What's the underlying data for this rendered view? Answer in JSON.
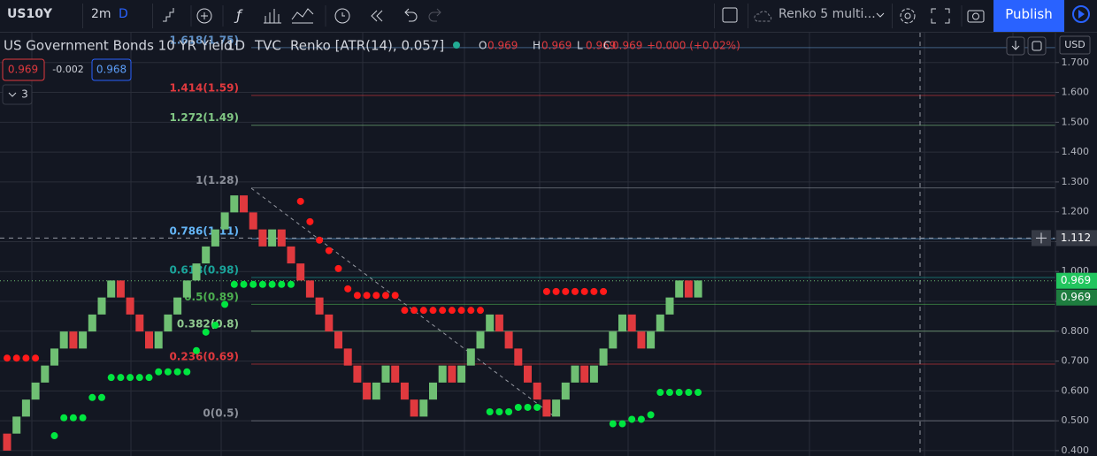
{
  "toolbar": {
    "symbol": "US10Y",
    "interval": "2m",
    "interval_unit": "D",
    "template": "Renko 5 multi...",
    "publish": "Publish"
  },
  "legend": {
    "title": "US Government Bonds 10 YR Yield",
    "resolution": "1D",
    "source": "TVC",
    "style": "Renko [ATR(14), 0.057]",
    "ohlc": [
      {
        "key": "O",
        "value": "0.969"
      },
      {
        "key": "H",
        "value": "0.969"
      },
      {
        "key": "L",
        "value": "0.969"
      },
      {
        "key": "C",
        "value": "0.969"
      }
    ],
    "change": "+0.000 (+0.02%)",
    "sell": "0.969",
    "spread": "-0.002",
    "buy": "0.968",
    "indicators": "3"
  },
  "chart_data": {
    "type": "renko",
    "currency": "USD",
    "ylim": [
      0.382,
      1.8
    ],
    "yticks": [
      {
        "value": 1.7,
        "label": "1.700"
      },
      {
        "value": 1.6,
        "label": "1.600"
      },
      {
        "value": 1.5,
        "label": "1.500"
      },
      {
        "value": 1.4,
        "label": "1.400"
      },
      {
        "value": 1.3,
        "label": "1.300"
      },
      {
        "value": 1.2,
        "label": "1.200"
      },
      {
        "value": 1.1,
        "label": "1.100"
      },
      {
        "value": 1.0,
        "label": "1.000"
      },
      {
        "value": 0.9,
        "label": "0.900"
      },
      {
        "value": 0.8,
        "label": "0.800"
      },
      {
        "value": 0.7,
        "label": "0.700"
      },
      {
        "value": 0.6,
        "label": "0.600"
      },
      {
        "value": 0.5,
        "label": "0.500"
      },
      {
        "value": 0.4,
        "label": "0.400"
      }
    ],
    "grid": true,
    "up_color": "#6fbf73",
    "down_color": "#e0393e",
    "up_dot_color": "#00e640",
    "down_dot_color": "#ff1a1a",
    "open": [
      0.457,
      0.457,
      0.514,
      0.571,
      0.628,
      0.685,
      0.742,
      0.799,
      0.742,
      0.799,
      0.856,
      0.913,
      0.97,
      0.913,
      0.856,
      0.799,
      0.742,
      0.799,
      0.856,
      0.913,
      0.97,
      1.027,
      1.084,
      1.141,
      1.198,
      1.255,
      1.198,
      1.141,
      1.084,
      1.141,
      1.084,
      1.027,
      0.97,
      0.913,
      0.856,
      0.799,
      0.742,
      0.685,
      0.628,
      0.571,
      0.628,
      0.685,
      0.628,
      0.571,
      0.514,
      0.571,
      0.628,
      0.685,
      0.628,
      0.685,
      0.742,
      0.799,
      0.856,
      0.799,
      0.742,
      0.685,
      0.628,
      0.571,
      0.514,
      0.571,
      0.628,
      0.685,
      0.628,
      0.685,
      0.742,
      0.799,
      0.856,
      0.799,
      0.742,
      0.799,
      0.856,
      0.913,
      0.97,
      0.913
    ],
    "close": [
      0.4,
      0.514,
      0.571,
      0.628,
      0.685,
      0.742,
      0.799,
      0.742,
      0.799,
      0.856,
      0.913,
      0.97,
      0.913,
      0.856,
      0.799,
      0.742,
      0.799,
      0.856,
      0.913,
      0.97,
      1.027,
      1.084,
      1.141,
      1.198,
      1.255,
      1.198,
      1.141,
      1.084,
      1.141,
      1.084,
      1.027,
      0.97,
      0.913,
      0.856,
      0.799,
      0.742,
      0.685,
      0.628,
      0.571,
      0.628,
      0.685,
      0.628,
      0.571,
      0.514,
      0.571,
      0.628,
      0.685,
      0.628,
      0.685,
      0.742,
      0.799,
      0.856,
      0.799,
      0.742,
      0.685,
      0.628,
      0.571,
      0.514,
      0.571,
      0.628,
      0.685,
      0.628,
      0.685,
      0.742,
      0.799,
      0.856,
      0.799,
      0.742,
      0.799,
      0.856,
      0.913,
      0.97,
      0.913,
      0.97
    ],
    "supertrend_up": [
      null,
      null,
      null,
      null,
      null,
      0.45,
      0.51,
      0.51,
      0.51,
      0.578,
      0.578,
      0.645,
      0.645,
      0.645,
      0.645,
      0.645,
      0.664,
      0.664,
      0.664,
      0.664,
      0.735,
      0.797,
      0.82,
      0.89,
      0.957,
      0.957,
      0.957,
      0.957,
      0.957,
      0.957,
      0.957,
      null,
      null,
      null,
      null,
      null,
      null,
      null,
      null,
      null,
      null,
      null,
      null,
      null,
      null,
      null,
      null,
      null,
      null,
      null,
      null,
      0.53,
      0.53,
      0.53,
      0.545,
      0.545,
      0.545,
      null,
      null,
      null,
      null,
      null,
      null,
      null,
      0.49,
      0.49,
      0.505,
      0.505,
      0.52,
      0.595,
      0.595,
      0.595,
      0.595,
      0.595
    ],
    "supertrend_down": [
      0.71,
      0.71,
      0.71,
      0.71,
      null,
      null,
      null,
      null,
      null,
      null,
      null,
      null,
      null,
      null,
      null,
      null,
      null,
      null,
      null,
      null,
      null,
      null,
      null,
      null,
      null,
      null,
      null,
      null,
      null,
      null,
      null,
      1.235,
      1.167,
      1.105,
      1.07,
      1.01,
      0.942,
      0.92,
      0.92,
      0.92,
      0.92,
      0.92,
      0.87,
      0.87,
      0.87,
      0.87,
      0.87,
      0.87,
      0.87,
      0.87,
      0.87,
      null,
      null,
      null,
      null,
      null,
      null,
      0.933,
      0.933,
      0.933,
      0.933,
      0.933,
      0.933,
      0.933,
      null,
      null,
      null,
      null,
      null,
      null,
      null,
      null,
      null,
      null
    ],
    "fib": [
      {
        "label": "1.618(1.75)",
        "value": 1.75,
        "color": "#5f8fc4"
      },
      {
        "label": "1.414(1.59)",
        "value": 1.59,
        "color": "#e0393e"
      },
      {
        "label": "1.272(1.49)",
        "value": 1.49,
        "color": "#81c784"
      },
      {
        "label": "1(1.28)",
        "value": 1.28,
        "color": "#8b8f99"
      },
      {
        "label": "0.786(1.11)",
        "value": 1.11,
        "color": "#64b5f6"
      },
      {
        "label": "0.618(0.98)",
        "value": 0.98,
        "color": "#1aa39a"
      },
      {
        "label": "0.5(0.89)",
        "value": 0.89,
        "color": "#4caf50"
      },
      {
        "label": "0.382(0.8)",
        "value": 0.8,
        "color": "#8fc98f"
      },
      {
        "label": "0.236(0.69)",
        "value": 0.69,
        "color": "#e0393e"
      },
      {
        "label": "0(0.5)",
        "value": 0.5,
        "color": "#8b8f99"
      }
    ],
    "crosshair_price": {
      "value": 1.112,
      "label": "1.112"
    },
    "last_prices": [
      {
        "value": 0.969,
        "label": "0.969"
      },
      {
        "value": 0.969,
        "label": "0.969"
      }
    ]
  }
}
